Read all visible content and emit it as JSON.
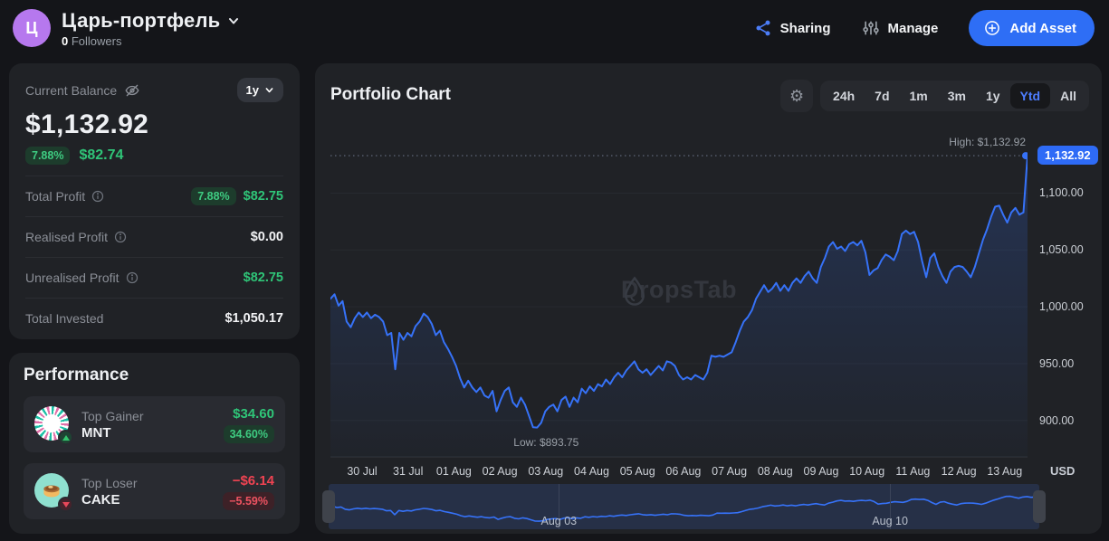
{
  "header": {
    "avatar_letter": "Ц",
    "title": "Царь-портфель",
    "followers_count": "0",
    "followers_label": "Followers",
    "sharing_label": "Sharing",
    "manage_label": "Manage",
    "add_asset_label": "Add Asset"
  },
  "balance_card": {
    "label": "Current Balance",
    "period": "1y",
    "amount": "$1,132.92",
    "change_pct": "7.88%",
    "change_amount": "$82.74",
    "stats": [
      {
        "label": "Total Profit",
        "badge": "7.88%",
        "value": "$82.75",
        "value_color": "green"
      },
      {
        "label": "Realised Profit",
        "value": "$0.00",
        "value_color": "white"
      },
      {
        "label": "Unrealised Profit",
        "value": "$82.75",
        "value_color": "green"
      },
      {
        "label": "Total Invested",
        "value": "$1,050.17",
        "value_color": "white"
      }
    ]
  },
  "performance_card": {
    "title": "Performance",
    "gainer": {
      "role": "Top Gainer",
      "symbol": "MNT",
      "value": "$34.60",
      "pct": "34.60%"
    },
    "loser": {
      "role": "Top Loser",
      "symbol": "CAKE",
      "value": "−$6.14",
      "pct": "−5.59%"
    }
  },
  "chart_card": {
    "title": "Portfolio Chart",
    "ranges": [
      "24h",
      "7d",
      "1m",
      "3m",
      "1y",
      "Ytd",
      "All"
    ],
    "active_range": "Ytd",
    "high_label": "High: $1,132.92",
    "low_label": "Low: $893.75",
    "axis_badge": "1,132.92",
    "currency": "USD",
    "watermark": "DropsTab"
  },
  "chart_data": {
    "type": "line",
    "title": "Portfolio Chart",
    "unit": "USD",
    "high": 1132.92,
    "low": 893.75,
    "ylim": [
      868,
      1146.5
    ],
    "y_ticks": [
      1100,
      1050,
      1000,
      950,
      900
    ],
    "y_tick_labels": [
      "1,100.00",
      "1,050.00",
      "1,000.00",
      "950.00",
      "900.00"
    ],
    "x_tick_labels": [
      "30 Jul",
      "31 Jul",
      "01 Aug",
      "02 Aug",
      "03 Aug",
      "04 Aug",
      "05 Aug",
      "06 Aug",
      "07 Aug",
      "08 Aug",
      "09 Aug",
      "10 Aug",
      "11 Aug",
      "12 Aug",
      "13 Aug"
    ],
    "grid": true,
    "legend": false,
    "line_color": "#3672f8",
    "values": [
      1007,
      1011,
      1001,
      1005,
      987,
      982,
      990,
      995,
      991,
      995,
      990,
      993,
      991,
      987,
      975,
      977,
      945,
      977,
      971,
      977,
      974,
      983,
      987,
      994,
      991,
      985,
      975,
      979,
      969,
      963,
      956,
      948,
      937,
      929,
      935,
      929,
      925,
      929,
      922,
      920,
      926,
      908,
      918,
      926,
      929,
      916,
      912,
      920,
      914,
      904,
      894,
      893.75,
      898,
      908,
      912,
      914,
      908,
      918,
      921,
      912,
      920,
      916,
      928,
      924,
      930,
      926,
      932,
      930,
      936,
      932,
      938,
      942,
      938,
      944,
      948,
      952,
      945,
      942,
      945,
      940,
      944,
      948,
      944,
      952,
      951,
      948,
      940,
      936,
      938,
      936,
      940,
      938,
      936,
      942,
      957,
      956,
      957,
      956,
      958,
      960,
      969,
      979,
      987,
      991,
      997,
      1007,
      1013,
      1019,
      1013,
      1016,
      1021,
      1014,
      1019,
      1014,
      1021,
      1025,
      1021,
      1027,
      1031,
      1025,
      1021,
      1035,
      1043,
      1053,
      1057,
      1051,
      1053,
      1049,
      1055,
      1057,
      1054,
      1058,
      1048,
      1028,
      1032,
      1034,
      1041,
      1046,
      1044,
      1041,
      1049,
      1064,
      1067,
      1064,
      1066,
      1057,
      1040,
      1026,
      1043,
      1047,
      1035,
      1027,
      1021,
      1031,
      1035,
      1036,
      1035,
      1031,
      1026,
      1035,
      1047,
      1059,
      1068,
      1079,
      1088,
      1089,
      1081,
      1074,
      1083,
      1087,
      1081,
      1083,
      1132.92
    ],
    "navigator": {
      "labels": [
        {
          "text": "Aug 03",
          "pct": 32.4
        },
        {
          "text": "Aug 10",
          "pct": 79.0
        }
      ]
    }
  },
  "colors": {
    "accent_blue": "#2e6ef5",
    "line_blue": "#3672f8",
    "green": "#2fc578",
    "red": "#f04352",
    "card_bg": "#202226",
    "page_bg": "#141519"
  }
}
